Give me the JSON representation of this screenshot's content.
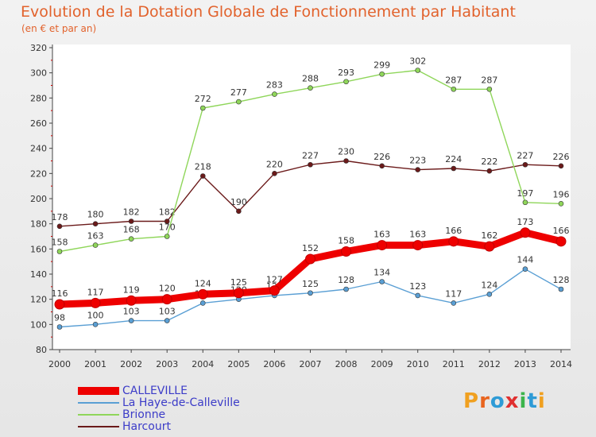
{
  "header": {
    "title": "Evolution de la Dotation Globale de Fonctionnement par Habitant",
    "subtitle": "(en € et par an)"
  },
  "logo": {
    "text": "Proxiti"
  },
  "chart_data": {
    "type": "line",
    "title": "Evolution de la Dotation Globale de Fonctionnement par Habitant",
    "subtitle": "(en € et par an)",
    "xlabel": "",
    "ylabel": "",
    "ylim": [
      80,
      320
    ],
    "yticks": [
      80,
      100,
      120,
      140,
      160,
      180,
      200,
      220,
      240,
      260,
      280,
      300,
      320
    ],
    "grid": false,
    "legend_position": "bottom-left",
    "x": [
      "2000",
      "2001",
      "2002",
      "2003",
      "2004",
      "2005",
      "2006",
      "2007",
      "2008",
      "2009",
      "2010",
      "2011",
      "2012",
      "2013",
      "2014"
    ],
    "series": [
      {
        "name": "Harcourt",
        "color": "#6b1a1a",
        "values": [
          178,
          180,
          182,
          182,
          218,
          190,
          220,
          227,
          230,
          226,
          223,
          224,
          222,
          227,
          226
        ]
      },
      {
        "name": "Brionne",
        "color": "#8fd65a",
        "values": [
          158,
          163,
          168,
          170,
          272,
          277,
          283,
          288,
          293,
          299,
          302,
          287,
          287,
          197,
          196
        ]
      },
      {
        "name": "La Haye-de-Calleville",
        "color": "#5a9fd4",
        "values": [
          98,
          100,
          103,
          103,
          117,
          120,
          123,
          125,
          128,
          134,
          123,
          117,
          124,
          144,
          128
        ]
      },
      {
        "name": "CALLEVILLE",
        "color": "#ee0000",
        "values": [
          116,
          117,
          119,
          120,
          124,
          125,
          127,
          152,
          158,
          163,
          163,
          166,
          162,
          173,
          166
        ]
      }
    ]
  }
}
